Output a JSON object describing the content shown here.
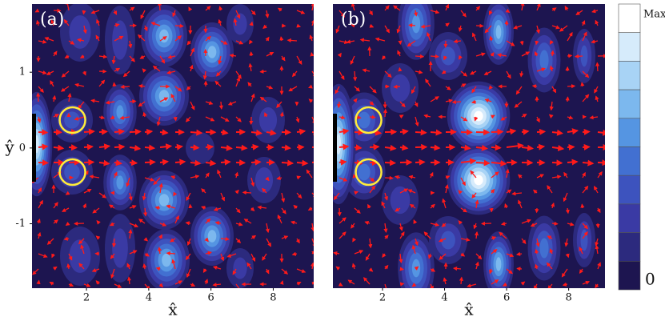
{
  "chart_data": [
    {
      "type": "contour",
      "label": "(a)",
      "xlabel": "x̂",
      "ylabel": "ŷ",
      "xlim": [
        0.25,
        9.3
      ],
      "ylim": [
        -1.85,
        1.9
      ],
      "xticks": [
        2,
        4,
        6,
        8
      ],
      "yticks": [
        -1,
        0,
        1
      ]
    },
    {
      "type": "contour",
      "label": "(b)",
      "xlabel": "x̂",
      "xlim": [
        0.4,
        9.17
      ],
      "ylim": [
        -1.85,
        1.9
      ],
      "xticks": [
        2,
        4,
        6,
        8
      ]
    }
  ],
  "colorbar": {
    "max_label": "Max",
    "min": 0,
    "colors": [
      "#ffffff",
      "#d6ebfb",
      "#a8d3f5",
      "#7cb8ee",
      "#5595e2",
      "#4270d1",
      "#3d53be",
      "#3a3aa4",
      "#2c2a7e",
      "#1d1550"
    ]
  }
}
